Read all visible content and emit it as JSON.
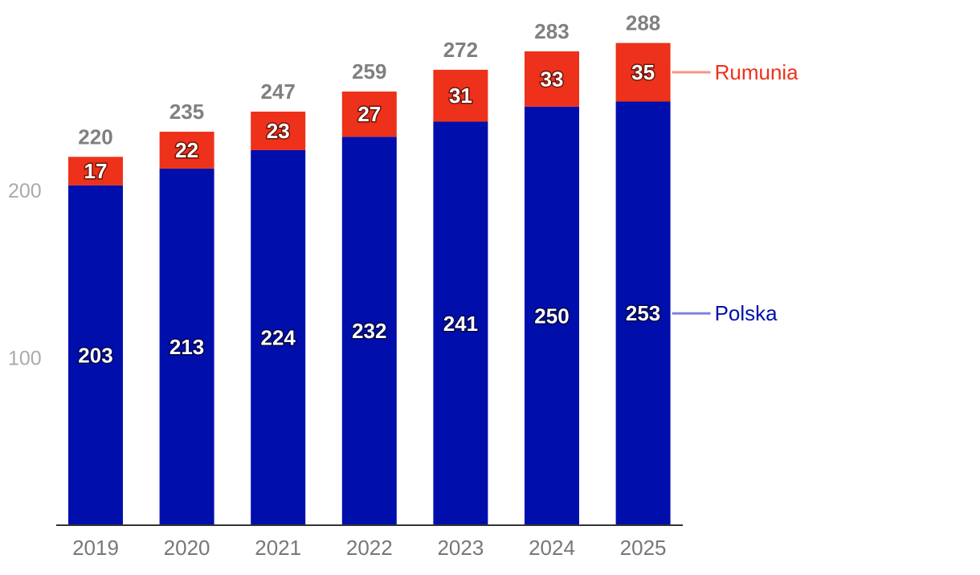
{
  "chart_data": {
    "type": "bar",
    "stacked": true,
    "categories": [
      "2019",
      "2020",
      "2021",
      "2022",
      "2023",
      "2024",
      "2025"
    ],
    "series": [
      {
        "name": "Polska",
        "values": [
          203,
          213,
          224,
          232,
          241,
          250,
          253
        ],
        "color": "#000fac",
        "legend_color": "#7f86dc"
      },
      {
        "name": "Rumunia",
        "values": [
          17,
          22,
          23,
          27,
          31,
          33,
          35
        ],
        "color": "#ee311a",
        "legend_color": "#f7948a"
      }
    ],
    "totals": [
      220,
      235,
      247,
      259,
      272,
      283,
      288
    ],
    "y_ticks": [
      100,
      200
    ],
    "ylim": [
      0,
      300
    ],
    "grid": false,
    "legend_placement": "right, at series end"
  }
}
